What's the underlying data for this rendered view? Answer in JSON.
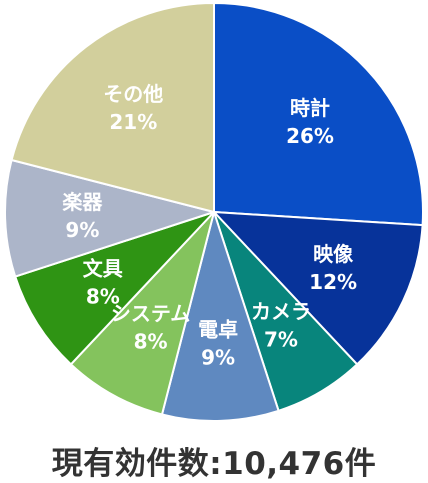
{
  "chart_data": {
    "type": "pie",
    "start_angle": "12 o'clock",
    "direction": "clockwise",
    "slices": [
      {
        "label": "時計",
        "value": 26,
        "value_label": "26%",
        "color": "#0a4ec6"
      },
      {
        "label": "映像",
        "value": 12,
        "value_label": "12%",
        "color": "#07339a"
      },
      {
        "label": "カメラ",
        "value": 7,
        "value_label": "7%",
        "color": "#08857c"
      },
      {
        "label": "電卓",
        "value": 9,
        "value_label": "9%",
        "color": "#5f89c0"
      },
      {
        "label": "システム",
        "value": 8,
        "value_label": "8%",
        "color": "#84c35d"
      },
      {
        "label": "文具",
        "value": 8,
        "value_label": "8%",
        "color": "#2f9414"
      },
      {
        "label": "楽器",
        "value": 9,
        "value_label": "9%",
        "color": "#acb5c9"
      },
      {
        "label": "その他",
        "value": 21,
        "value_label": "21%",
        "color": "#d2cf9c"
      }
    ]
  },
  "footer": {
    "text": "現有効件数:10,476件"
  }
}
